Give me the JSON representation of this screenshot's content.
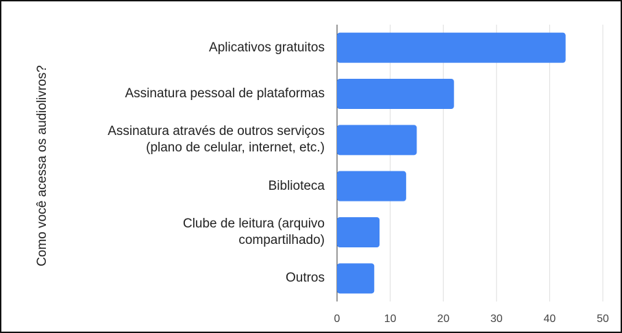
{
  "chart_data": {
    "type": "bar",
    "orientation": "horizontal",
    "y_axis_label": "Como você acessa os audiolivros?",
    "categories": [
      "Aplicativos gratuitos",
      "Assinatura pessoal de plataformas",
      "Assinatura através de outros serviços\n(plano de celular, internet, etc.)",
      "Biblioteca",
      "Clube de leitura (arquivo\ncompartilhado)",
      "Outros"
    ],
    "values": [
      43,
      22,
      15,
      13,
      8,
      7
    ],
    "color": "#4285f4",
    "xlim": [
      0,
      50
    ],
    "xticks": [
      0,
      10,
      20,
      30,
      40,
      50
    ],
    "grid": true
  }
}
